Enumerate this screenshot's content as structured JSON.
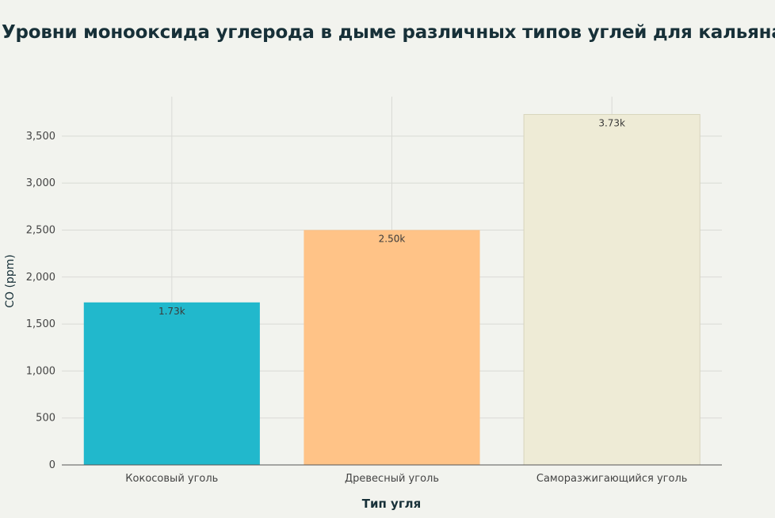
{
  "chart_data": {
    "type": "bar",
    "title": "Уровни монооксида углерода в дыме различных типов углей для кальяна",
    "xlabel": "Тип угля",
    "ylabel": "CO (ppm)",
    "categories": [
      "Кокосовый уголь",
      "Древесный уголь",
      "Саморазжигающийся уголь"
    ],
    "values": [
      1730,
      2500,
      3730
    ],
    "data_labels": [
      "1.73k",
      "2.50k",
      "3.73k"
    ],
    "bar_colors": [
      "#21b8cc",
      "#ffc387",
      "#eeebd6"
    ],
    "ylim": [
      0,
      3920
    ],
    "yticks": [
      0,
      500,
      1000,
      1500,
      2000,
      2500,
      3000,
      3500
    ],
    "ytick_labels": [
      "0",
      "500",
      "1,000",
      "1,500",
      "2,000",
      "2,500",
      "3,000",
      "3,500"
    ],
    "grid": true
  }
}
